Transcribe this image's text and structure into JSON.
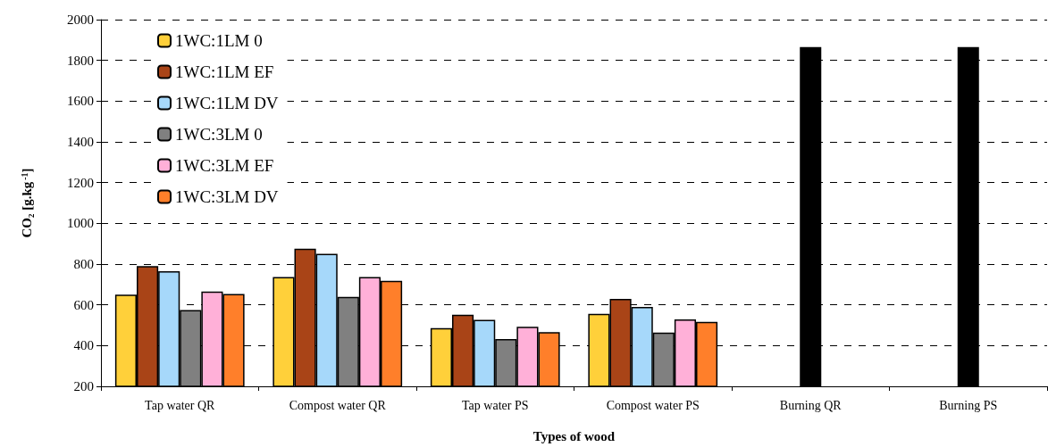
{
  "chart_data": {
    "type": "bar",
    "xlabel": "Types of wood",
    "ylabel": "CO₂ [g.kg$^{-1}$]",
    "categories": [
      "Tap water QR",
      "Compost water QR",
      "Tap water PS",
      "Compost water PS",
      "Burning QR",
      "Burning PS"
    ],
    "series": [
      {
        "name": "1WC:1LM 0",
        "color": "#ffd03a",
        "values": [
          650,
          737,
          486,
          556,
          null,
          null
        ]
      },
      {
        "name": "1WC:1LM EF",
        "color": "#a94417",
        "values": [
          790,
          876,
          552,
          629,
          null,
          null
        ]
      },
      {
        "name": "1WC:1LM DV",
        "color": "#a6d8fa",
        "values": [
          765,
          850,
          526,
          590,
          null,
          null
        ]
      },
      {
        "name": "1WC:3LM 0",
        "color": "#808080",
        "values": [
          574,
          639,
          432,
          464,
          null,
          null
        ]
      },
      {
        "name": "1WC:3LM EF",
        "color": "#ffb0d8",
        "values": [
          665,
          737,
          492,
          529,
          null,
          null
        ]
      },
      {
        "name": "1WC:3LM DV",
        "color": "#ff7f2a",
        "values": [
          653,
          718,
          466,
          516,
          null,
          null
        ]
      },
      {
        "color": "#000000",
        "values": [
          null,
          null,
          null,
          null,
          1865,
          1865
        ]
      }
    ],
    "ylim": [
      200,
      2000
    ],
    "yticks": [
      200,
      400,
      600,
      800,
      1000,
      1200,
      1400,
      1600,
      1800,
      2000
    ],
    "grid": "y",
    "legend": "top left"
  }
}
